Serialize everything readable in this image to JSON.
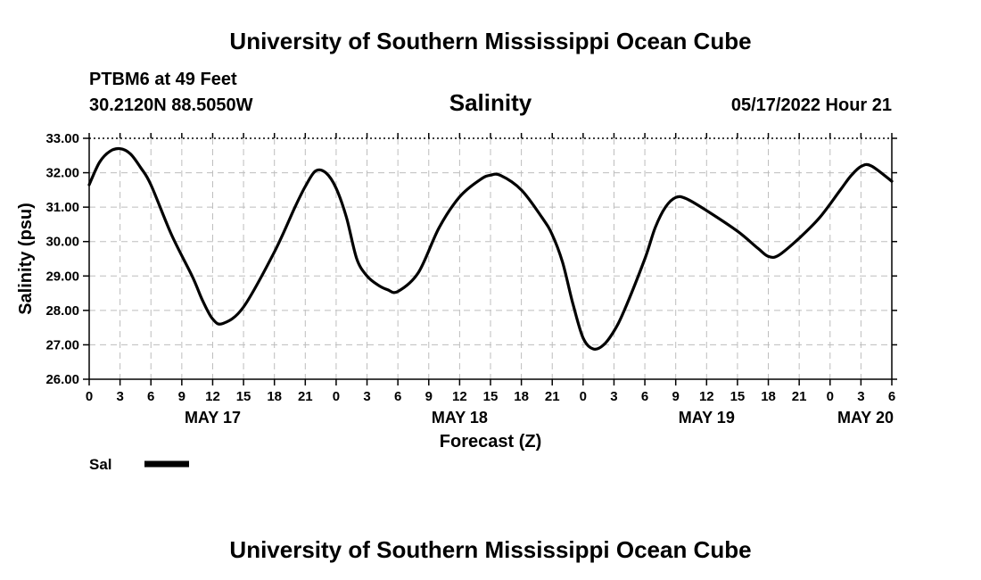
{
  "header": {
    "title": "University of Southern Mississippi Ocean Cube",
    "station": "PTBM6 at 49 Feet",
    "coords": "30.2120N  88.5050W",
    "chart_title": "Salinity",
    "timestamp": "05/17/2022 Hour 21"
  },
  "footer": {
    "title": "University of Southern Mississippi Ocean Cube"
  },
  "chart_data": {
    "type": "line",
    "title": "Salinity",
    "xlabel": "Forecast (Z)",
    "ylabel": "Salinity (psu)",
    "ylim": [
      26.0,
      33.0
    ],
    "yticks": [
      "26.00",
      "27.00",
      "28.00",
      "29.00",
      "30.00",
      "31.00",
      "32.00",
      "33.00"
    ],
    "xticks": [
      "0",
      "3",
      "6",
      "9",
      "12",
      "15",
      "18",
      "21",
      "0",
      "3",
      "6",
      "9",
      "12",
      "15",
      "18",
      "21",
      "0",
      "3",
      "6",
      "9",
      "12",
      "15",
      "18",
      "21",
      "0",
      "3",
      "6"
    ],
    "date_labels": [
      "MAY 17",
      "MAY 18",
      "MAY 19",
      "MAY 20"
    ],
    "grid": true,
    "legend_position": "bottom-left",
    "series": [
      {
        "name": "Sal",
        "color": "#000000",
        "x": [
          "2022-05-17 00:00",
          "2022-05-17 01:00",
          "2022-05-17 02:00",
          "2022-05-17 03:00",
          "2022-05-17 04:00",
          "2022-05-17 05:00",
          "2022-05-17 06:00",
          "2022-05-17 08:00",
          "2022-05-17 10:00",
          "2022-05-17 11:00",
          "2022-05-17 12:00",
          "2022-05-17 13:00",
          "2022-05-17 15:00",
          "2022-05-17 18:00",
          "2022-05-17 20:00",
          "2022-05-17 21:00",
          "2022-05-17 22:00",
          "2022-05-17 23:00",
          "2022-05-18 00:00",
          "2022-05-18 01:00",
          "2022-05-18 02:00",
          "2022-05-18 03:00",
          "2022-05-18 04:00",
          "2022-05-18 05:00",
          "2022-05-18 06:00",
          "2022-05-18 08:00",
          "2022-05-18 10:00",
          "2022-05-18 12:00",
          "2022-05-18 14:00",
          "2022-05-18 15:00",
          "2022-05-18 16:00",
          "2022-05-18 18:00",
          "2022-05-18 20:00",
          "2022-05-18 21:00",
          "2022-05-18 22:00",
          "2022-05-18 23:00",
          "2022-05-19 00:00",
          "2022-05-19 01:00",
          "2022-05-19 02:00",
          "2022-05-19 03:00",
          "2022-05-19 04:00",
          "2022-05-19 06:00",
          "2022-05-19 07:00",
          "2022-05-19 08:00",
          "2022-05-19 09:00",
          "2022-05-19 10:00",
          "2022-05-19 12:00",
          "2022-05-19 15:00",
          "2022-05-19 17:00",
          "2022-05-19 18:00",
          "2022-05-19 19:00",
          "2022-05-19 21:00",
          "2022-05-19 23:00",
          "2022-05-20 01:00",
          "2022-05-20 02:00",
          "2022-05-20 03:00",
          "2022-05-20 04:00",
          "2022-05-20 06:00"
        ],
        "values": [
          31.65,
          32.3,
          32.62,
          32.7,
          32.55,
          32.15,
          31.65,
          30.2,
          29.0,
          28.3,
          27.75,
          27.62,
          28.1,
          29.7,
          31.0,
          31.6,
          32.05,
          32.0,
          31.55,
          30.7,
          29.5,
          29.0,
          28.75,
          28.6,
          28.55,
          29.1,
          30.4,
          31.3,
          31.8,
          31.93,
          31.92,
          31.5,
          30.7,
          30.2,
          29.4,
          28.2,
          27.2,
          26.88,
          27.0,
          27.4,
          28.0,
          29.5,
          30.4,
          31.0,
          31.28,
          31.25,
          30.9,
          30.3,
          29.8,
          29.57,
          29.6,
          30.1,
          30.7,
          31.5,
          31.9,
          32.18,
          32.2,
          31.75
        ]
      }
    ]
  }
}
